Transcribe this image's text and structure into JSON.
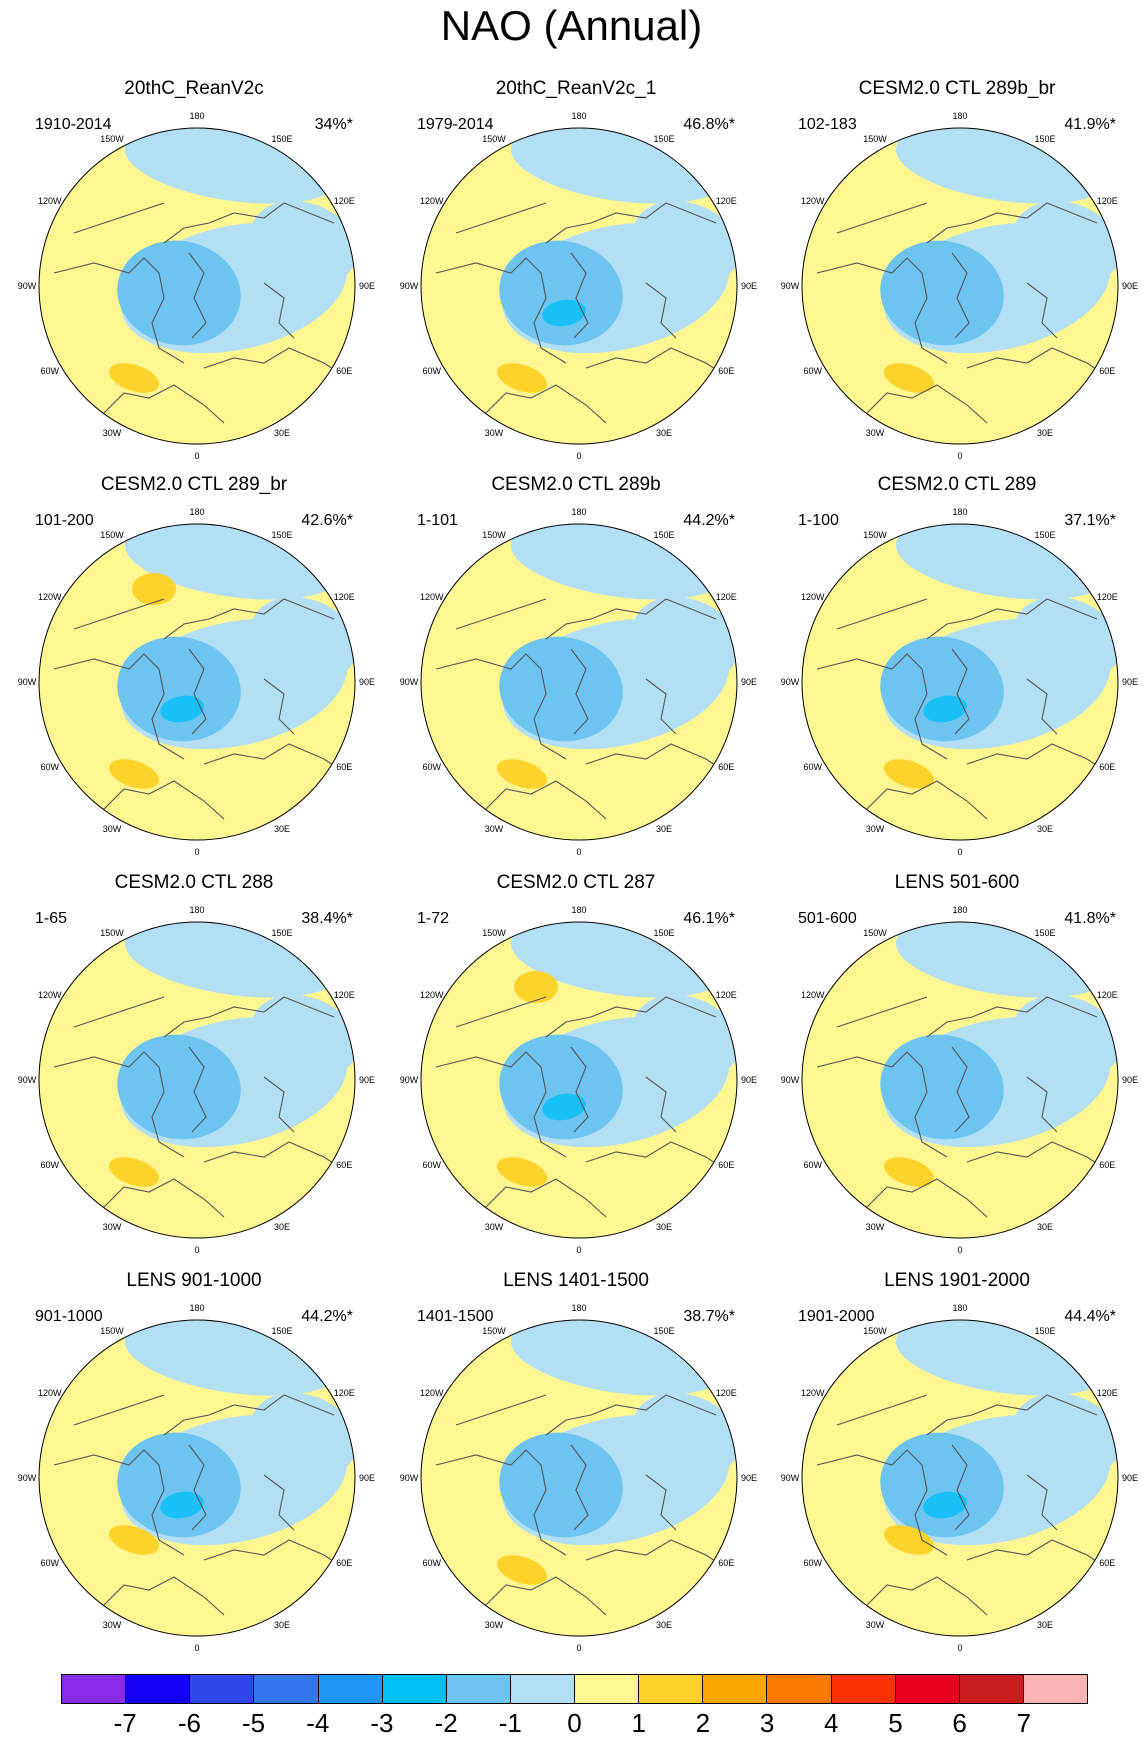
{
  "title": "NAO (Annual)",
  "colors": {
    "neg_ocean": "#b3dff5",
    "neg1": "#6dc4f1",
    "neg2": "#18c0f5",
    "pos_land": "#fef690",
    "pos1": "#fdd32b",
    "coast": "#555555"
  },
  "lon_labels": [
    "180",
    "150E",
    "120E",
    "90E",
    "60E",
    "30E",
    "0",
    "30W",
    "60W",
    "90W",
    "120W",
    "150W"
  ],
  "panels": [
    {
      "title": "20thC_ReanV2c",
      "years": "1910-2014",
      "pct": "34%*"
    },
    {
      "title": "20thC_ReanV2c_1",
      "years": "1979-2014",
      "pct": "46.8%*"
    },
    {
      "title": "CESM2.0 CTL 289b_br",
      "years": "102-183",
      "pct": "41.9%*"
    },
    {
      "title": "CESM2.0 CTL 289_br",
      "years": "101-200",
      "pct": "42.6%*"
    },
    {
      "title": "CESM2.0 CTL 289b",
      "years": "1-101",
      "pct": "44.2%*"
    },
    {
      "title": "CESM2.0 CTL 289",
      "years": "1-100",
      "pct": "37.1%*"
    },
    {
      "title": "CESM2.0 CTL 288",
      "years": "1-65",
      "pct": "38.4%*"
    },
    {
      "title": "CESM2.0 CTL 287",
      "years": "1-72",
      "pct": "46.1%*"
    },
    {
      "title": "LENS 501-600",
      "years": "501-600",
      "pct": "41.8%*"
    },
    {
      "title": "LENS 901-1000",
      "years": "901-1000",
      "pct": "44.2%*"
    },
    {
      "title": "LENS 1401-1500",
      "years": "1401-1500",
      "pct": "38.7%*"
    },
    {
      "title": "LENS 1901-2000",
      "years": "1901-2000",
      "pct": "44.4%*"
    }
  ],
  "colorbar": {
    "ticks": [
      "-7",
      "-6",
      "-5",
      "-4",
      "-3",
      "-2",
      "-1",
      "0",
      "1",
      "2",
      "3",
      "4",
      "5",
      "6",
      "7"
    ],
    "colors": [
      "#8a2be8",
      "#1400f5",
      "#2d47e8",
      "#3278ec",
      "#1e96f5",
      "#00c0f8",
      "#6dc4f1",
      "#b3dff5",
      "#fef690",
      "#fdd32b",
      "#fca400",
      "#fb7a00",
      "#fb3200",
      "#e8001e",
      "#c81e1e",
      "#fbb4b4"
    ]
  }
}
